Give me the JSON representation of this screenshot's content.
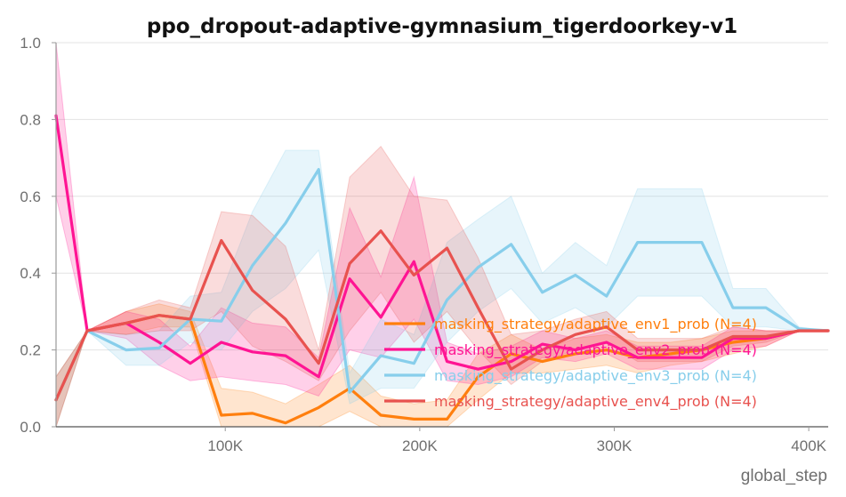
{
  "chart_data": {
    "type": "line",
    "title": "ppo_dropout-adaptive-gymnasium_tigerdoorkey-v1",
    "xlabel": "global_step",
    "ylabel": "",
    "xlim": [
      13000,
      410000
    ],
    "ylim": [
      0,
      1.0
    ],
    "grid": true,
    "legend_position": "lower-right",
    "x_ticks": [
      {
        "value": 100000,
        "label": "100K"
      },
      {
        "value": 200000,
        "label": "200K"
      },
      {
        "value": 300000,
        "label": "300K"
      },
      {
        "value": 400000,
        "label": "400K"
      }
    ],
    "y_ticks": [
      {
        "value": 0.0,
        "label": "0.0"
      },
      {
        "value": 0.2,
        "label": "0.2"
      },
      {
        "value": 0.4,
        "label": "0.4"
      },
      {
        "value": 0.6,
        "label": "0.6"
      },
      {
        "value": 0.8,
        "label": "0.8"
      },
      {
        "value": 1.0,
        "label": "1.0"
      }
    ],
    "series": [
      {
        "name": "masking_strategy/adaptive_env1_prob (N=4)",
        "color": "#ff7f0e",
        "x": [
          13000,
          29000,
          49000,
          66000,
          82000,
          98000,
          114000,
          131000,
          148000,
          164000,
          180000,
          197000,
          214000,
          230000,
          247000,
          263000,
          280000,
          296000,
          312000,
          329000,
          345000,
          361000,
          378000,
          395000,
          410000
        ],
        "y": [
          0.07,
          0.25,
          0.27,
          0.29,
          0.28,
          0.03,
          0.035,
          0.01,
          0.05,
          0.1,
          0.03,
          0.02,
          0.02,
          0.13,
          0.19,
          0.17,
          0.19,
          0.2,
          0.18,
          0.19,
          0.2,
          0.22,
          0.23,
          0.25,
          0.25
        ],
        "lower": [
          0.0,
          0.25,
          0.24,
          0.26,
          0.26,
          0.0,
          0.0,
          0.0,
          0.0,
          0.04,
          0.0,
          0.0,
          0.0,
          0.07,
          0.14,
          0.14,
          0.15,
          0.16,
          0.14,
          0.16,
          0.17,
          0.19,
          0.21,
          0.25,
          0.25
        ],
        "upper": [
          0.13,
          0.25,
          0.3,
          0.32,
          0.3,
          0.1,
          0.09,
          0.06,
          0.11,
          0.16,
          0.08,
          0.06,
          0.07,
          0.19,
          0.24,
          0.2,
          0.23,
          0.24,
          0.22,
          0.22,
          0.23,
          0.25,
          0.25,
          0.25,
          0.25
        ]
      },
      {
        "name": "masking_strategy/adaptive_env2_prob (N=4)",
        "color": "#ff1493",
        "x": [
          13000,
          29000,
          49000,
          66000,
          82000,
          98000,
          114000,
          131000,
          148000,
          164000,
          180000,
          197000,
          214000,
          230000,
          247000,
          263000,
          280000,
          296000,
          312000,
          329000,
          345000,
          361000,
          378000,
          395000,
          410000
        ],
        "y": [
          0.81,
          0.25,
          0.27,
          0.22,
          0.165,
          0.22,
          0.195,
          0.185,
          0.13,
          0.385,
          0.285,
          0.43,
          0.17,
          0.15,
          0.17,
          0.215,
          0.2,
          0.22,
          0.18,
          0.18,
          0.18,
          0.23,
          0.23,
          0.25,
          0.25
        ],
        "lower": [
          0.6,
          0.25,
          0.23,
          0.16,
          0.12,
          0.13,
          0.12,
          0.11,
          0.08,
          0.2,
          0.18,
          0.28,
          0.12,
          0.11,
          0.13,
          0.18,
          0.17,
          0.19,
          0.15,
          0.15,
          0.15,
          0.2,
          0.21,
          0.25,
          0.25
        ],
        "upper": [
          1.0,
          0.25,
          0.3,
          0.28,
          0.21,
          0.31,
          0.27,
          0.26,
          0.18,
          0.57,
          0.39,
          0.65,
          0.22,
          0.19,
          0.21,
          0.25,
          0.23,
          0.25,
          0.21,
          0.21,
          0.21,
          0.26,
          0.25,
          0.25,
          0.25
        ]
      },
      {
        "name": "masking_strategy/adaptive_env3_prob (N=4)",
        "color": "#87ceeb",
        "x": [
          13000,
          29000,
          49000,
          66000,
          82000,
          98000,
          114000,
          131000,
          148000,
          164000,
          180000,
          197000,
          214000,
          230000,
          247000,
          263000,
          280000,
          296000,
          312000,
          329000,
          345000,
          361000,
          378000,
          395000,
          410000
        ],
        "y": [
          0.07,
          0.25,
          0.2,
          0.205,
          0.28,
          0.275,
          0.42,
          0.53,
          0.67,
          0.09,
          0.185,
          0.165,
          0.33,
          0.415,
          0.475,
          0.35,
          0.395,
          0.34,
          0.48,
          0.48,
          0.48,
          0.31,
          0.31,
          0.255,
          0.25
        ],
        "lower": [
          0.0,
          0.25,
          0.16,
          0.16,
          0.22,
          0.2,
          0.3,
          0.36,
          0.46,
          0.06,
          0.1,
          0.1,
          0.22,
          0.3,
          0.36,
          0.27,
          0.31,
          0.26,
          0.34,
          0.34,
          0.34,
          0.26,
          0.26,
          0.25,
          0.25
        ],
        "upper": [
          0.13,
          0.25,
          0.24,
          0.25,
          0.34,
          0.35,
          0.56,
          0.72,
          0.72,
          0.14,
          0.28,
          0.24,
          0.48,
          0.54,
          0.6,
          0.4,
          0.48,
          0.42,
          0.62,
          0.62,
          0.62,
          0.36,
          0.36,
          0.26,
          0.25
        ]
      },
      {
        "name": "masking_strategy/adaptive_env4_prob (N=4)",
        "color": "#e8524f",
        "x": [
          13000,
          29000,
          49000,
          66000,
          82000,
          98000,
          114000,
          131000,
          148000,
          164000,
          180000,
          197000,
          214000,
          230000,
          247000,
          263000,
          280000,
          296000,
          312000,
          329000,
          345000,
          361000,
          378000,
          395000,
          410000
        ],
        "y": [
          0.07,
          0.25,
          0.27,
          0.29,
          0.28,
          0.485,
          0.355,
          0.28,
          0.165,
          0.425,
          0.51,
          0.395,
          0.465,
          0.31,
          0.15,
          0.2,
          0.24,
          0.26,
          0.2,
          0.2,
          0.2,
          0.235,
          0.235,
          0.25,
          0.25
        ],
        "lower": [
          0.0,
          0.25,
          0.24,
          0.25,
          0.25,
          0.3,
          0.21,
          0.17,
          0.12,
          0.25,
          0.35,
          0.22,
          0.3,
          0.2,
          0.11,
          0.17,
          0.2,
          0.22,
          0.17,
          0.17,
          0.17,
          0.21,
          0.22,
          0.25,
          0.25
        ],
        "upper": [
          0.13,
          0.25,
          0.3,
          0.33,
          0.31,
          0.56,
          0.55,
          0.47,
          0.2,
          0.65,
          0.73,
          0.6,
          0.59,
          0.44,
          0.24,
          0.25,
          0.28,
          0.3,
          0.23,
          0.23,
          0.23,
          0.26,
          0.25,
          0.25,
          0.25
        ]
      }
    ]
  }
}
